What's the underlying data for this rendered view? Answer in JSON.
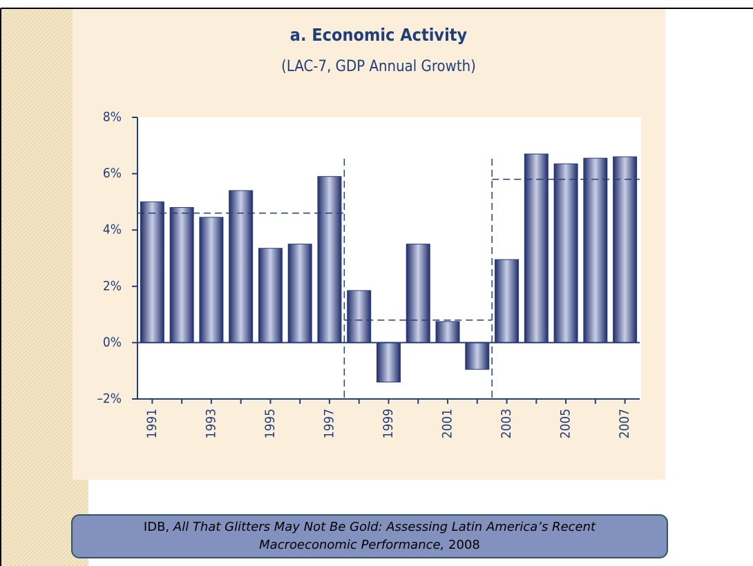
{
  "chart_data": {
    "type": "bar",
    "title": "a. Economic Activity",
    "subtitle": "(LAC-7, GDP Annual Growth)",
    "categories": [
      "1991",
      null,
      "1993",
      null,
      "1995",
      null,
      "1997",
      null,
      "1999",
      null,
      "2001",
      null,
      "2003",
      null,
      "2005",
      null,
      "2007"
    ],
    "values": [
      5.0,
      4.8,
      4.45,
      5.4,
      3.35,
      3.5,
      5.9,
      1.85,
      -1.4,
      3.5,
      0.75,
      -0.95,
      2.95,
      6.7,
      6.35,
      6.55,
      6.6
    ],
    "color": "#2b3a78",
    "ylim": [
      -2,
      8
    ],
    "yticks": [
      {
        "value": -2,
        "label": "–2%"
      },
      {
        "value": 0,
        "label": "0%"
      },
      {
        "value": 2,
        "label": "2%"
      },
      {
        "value": 4,
        "label": "4%"
      },
      {
        "value": 6,
        "label": "6%"
      },
      {
        "value": 8,
        "label": "8%"
      }
    ],
    "reference_lines": [
      {
        "from": 0,
        "to": 6,
        "value": 4.6
      },
      {
        "from": 7,
        "to": 11,
        "value": 0.8
      },
      {
        "from": 12,
        "to": 16,
        "value": 5.8
      }
    ],
    "caption": {
      "author": "IDB,",
      "work": "All That Glitters May Not Be Gold: Assessing Latin America’s Recent Macroeconomic Performance,",
      "year": "2008"
    }
  }
}
